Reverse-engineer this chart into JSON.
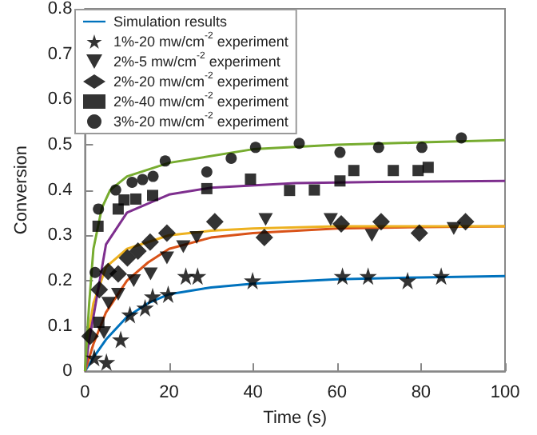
{
  "chart_data": {
    "type": "scatter",
    "xlabel": "Time (s)",
    "ylabel": "Conversion",
    "xlim": [
      0,
      100
    ],
    "xticks": [
      0,
      20,
      40,
      60,
      80,
      100
    ],
    "ylim": [
      0,
      0.8
    ],
    "yticks": [
      0,
      0.1,
      0.2,
      0.3,
      0.4,
      0.5,
      0.6,
      0.7,
      0.8
    ],
    "grid": false,
    "legend": "top left",
    "series": [
      {
        "type": "line",
        "name": "Simulation results",
        "color": "#0072bd",
        "marker": "none",
        "x": [
          0,
          2,
          5,
          10,
          15,
          20,
          30,
          40,
          60,
          80,
          100
        ],
        "values": [
          0,
          0.03,
          0.07,
          0.12,
          0.15,
          0.17,
          0.185,
          0.193,
          0.203,
          0.207,
          0.21
        ]
      },
      {
        "type": "line",
        "color": "#d95319",
        "marker": "none",
        "x": [
          0,
          2,
          5,
          10,
          15,
          20,
          30,
          40,
          60,
          80,
          100
        ],
        "values": [
          0,
          0.06,
          0.13,
          0.2,
          0.24,
          0.27,
          0.295,
          0.305,
          0.315,
          0.318,
          0.32
        ]
      },
      {
        "type": "line",
        "color": "#edb120",
        "marker": "none",
        "x": [
          0,
          1,
          2,
          5,
          10,
          20,
          30,
          40,
          60,
          80,
          100
        ],
        "values": [
          0,
          0.09,
          0.15,
          0.23,
          0.27,
          0.3,
          0.31,
          0.315,
          0.32,
          0.32,
          0.32
        ]
      },
      {
        "type": "line",
        "color": "#7e2f8e",
        "marker": "none",
        "x": [
          0,
          1,
          2,
          5,
          10,
          20,
          30,
          50,
          70,
          100
        ],
        "values": [
          0,
          0.07,
          0.12,
          0.28,
          0.35,
          0.39,
          0.405,
          0.415,
          0.418,
          0.42
        ]
      },
      {
        "type": "line",
        "color": "#77ac30",
        "marker": "none",
        "x": [
          0,
          1,
          2,
          4,
          6,
          10,
          20,
          40,
          60,
          80,
          100
        ],
        "values": [
          0,
          0.15,
          0.27,
          0.36,
          0.4,
          0.43,
          0.46,
          0.49,
          0.5,
          0.505,
          0.51
        ]
      },
      {
        "name": "1%-20 mw/cm$^{-2}$ experiment",
        "color": "#000000",
        "marker": "star",
        "x": [
          2.2,
          5.1,
          8.5,
          10.7,
          14.3,
          16.1,
          19.8,
          24,
          26.8,
          39.9,
          61.3,
          67.4,
          76.8,
          84.8
        ],
        "values": [
          0.03,
          0.02,
          0.07,
          0.125,
          0.14,
          0.165,
          0.17,
          0.21,
          0.21,
          0.2,
          0.21,
          0.21,
          0.2,
          0.21
        ]
      },
      {
        "name": "2%-5 mw/cm$^{-2}$ experiment",
        "color": "#000000",
        "marker": "triangle",
        "x": [
          4.5,
          5.6,
          7.9,
          11.6,
          15.6,
          19.5,
          23.4,
          26.6,
          43,
          58.5,
          68.3,
          87.8
        ],
        "values": [
          0.085,
          0.15,
          0.17,
          0.2,
          0.215,
          0.25,
          0.275,
          0.295,
          0.335,
          0.335,
          0.3,
          0.315
        ]
      },
      {
        "name": "2%-20 mw/cm$^{-2}$ experiment",
        "color": "#000000",
        "marker": "diamond",
        "x": [
          1.2,
          3.4,
          5.5,
          7.9,
          10.1,
          12.6,
          15.5,
          19.5,
          30.9,
          42.7,
          61,
          70.5,
          79.6,
          90.6
        ],
        "values": [
          0.077,
          0.18,
          0.22,
          0.215,
          0.25,
          0.265,
          0.285,
          0.305,
          0.33,
          0.295,
          0.325,
          0.33,
          0.305,
          0.33
        ]
      },
      {
        "name": "2%-40 mw/cm$^{-2}$ experiment",
        "color": "#000000",
        "marker": "square",
        "x": [
          3.3,
          3.1,
          7.9,
          9.3,
          12.1,
          16.1,
          29,
          39.4,
          48.7,
          54.6,
          60.7,
          64,
          73.4,
          79.3,
          81.7
        ],
        "values": [
          0.108,
          0.32,
          0.358,
          0.378,
          0.38,
          0.388,
          0.403,
          0.424,
          0.399,
          0.4,
          0.42,
          0.443,
          0.443,
          0.443,
          0.45
        ]
      },
      {
        "name": "3%-20 mw/cm$^{-2}$ experiment",
        "color": "#000000",
        "marker": "circle",
        "x": [
          2.4,
          3.2,
          7.3,
          11.2,
          13.7,
          16.2,
          19.1,
          29,
          34.8,
          40.6,
          51,
          60.7,
          69.9,
          80.2,
          89.6
        ],
        "values": [
          0.218,
          0.358,
          0.4,
          0.417,
          0.423,
          0.43,
          0.464,
          0.44,
          0.47,
          0.494,
          0.503,
          0.483,
          0.494,
          0.494,
          0.515
        ]
      }
    ]
  }
}
